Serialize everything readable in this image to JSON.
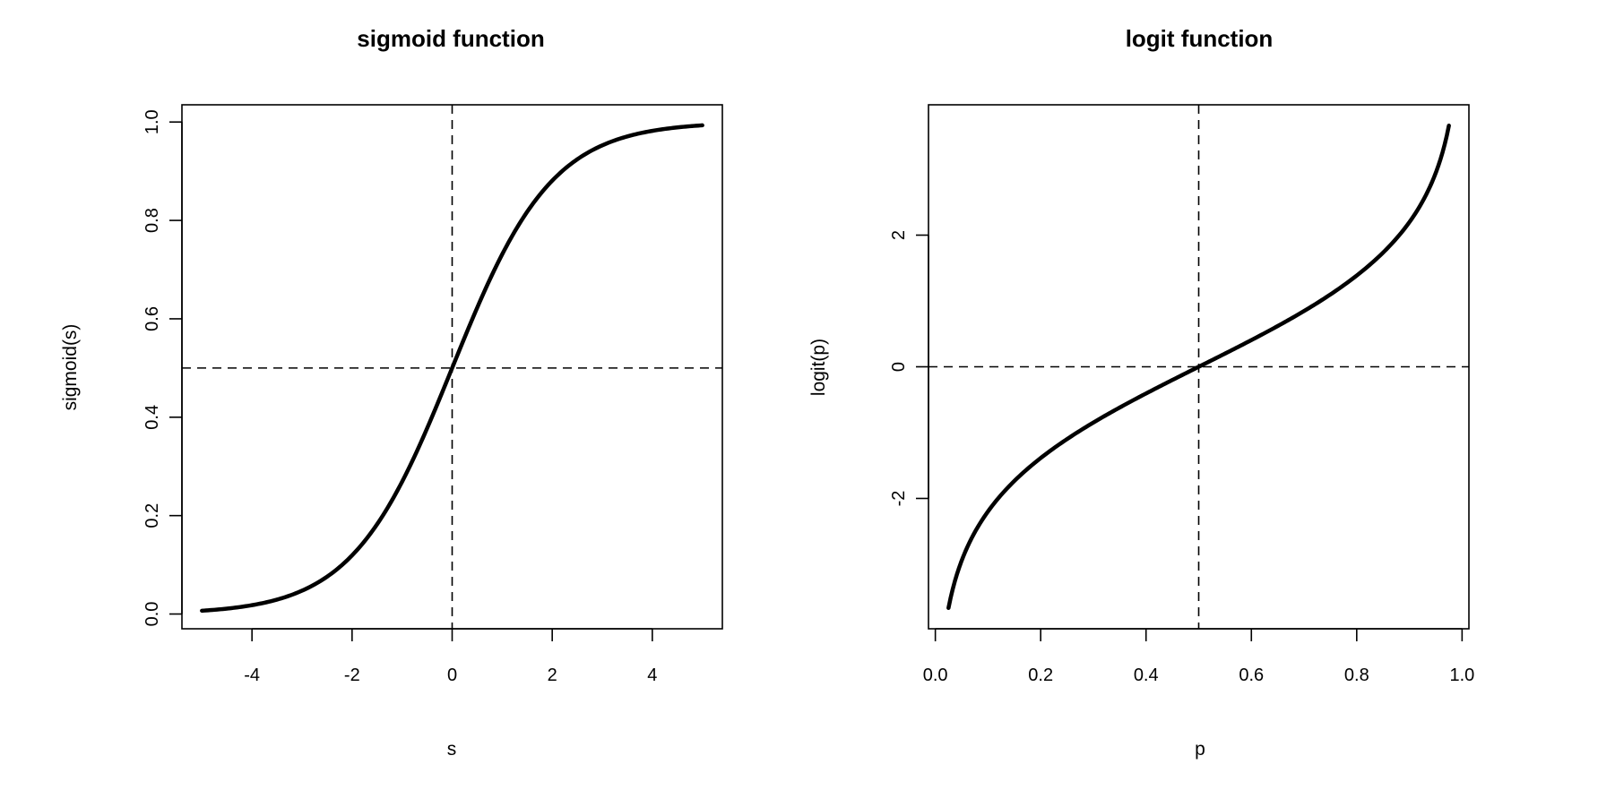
{
  "chart_data": [
    {
      "type": "line",
      "title": "sigmoid function",
      "xlabel": "s",
      "ylabel": "sigmoid(s)",
      "function": "sigmoid",
      "x_range": [
        -5,
        5
      ],
      "xlim": [
        -5.4,
        5.4
      ],
      "ylim": [
        -0.03,
        1.035
      ],
      "xticks": [
        -4,
        -2,
        0,
        2,
        4
      ],
      "xtick_labels": [
        "-4",
        "-2",
        "0",
        "2",
        "4"
      ],
      "yticks": [
        0.0,
        0.2,
        0.4,
        0.6,
        0.8,
        1.0
      ],
      "ytick_labels": [
        "0.0",
        "0.2",
        "0.4",
        "0.6",
        "0.8",
        "1.0"
      ],
      "reference_lines": {
        "vertical_x": 0,
        "horizontal_y": 0.5,
        "style": "dashed"
      },
      "series": [
        {
          "x": [
            -5,
            -4,
            -3,
            -2,
            -1,
            0,
            1,
            2,
            3,
            4,
            5
          ],
          "y": [
            0.007,
            0.018,
            0.047,
            0.119,
            0.269,
            0.5,
            0.731,
            0.881,
            0.953,
            0.982,
            0.993
          ]
        }
      ],
      "grid": false,
      "line_color": "#000000"
    },
    {
      "type": "line",
      "title": "logit function",
      "xlabel": "p",
      "ylabel": "logit(p)",
      "function": "logit",
      "x_range": [
        0.025,
        0.975
      ],
      "xlim": [
        -0.013,
        1.013
      ],
      "ylim": [
        -3.98,
        3.98
      ],
      "xticks": [
        0.0,
        0.2,
        0.4,
        0.6,
        0.8,
        1.0
      ],
      "xtick_labels": [
        "0.0",
        "0.2",
        "0.4",
        "0.6",
        "0.8",
        "1.0"
      ],
      "yticks": [
        -2,
        0,
        2
      ],
      "ytick_labels": [
        "-2",
        "0",
        "2"
      ],
      "reference_lines": {
        "vertical_x": 0.5,
        "horizontal_y": 0,
        "style": "dashed"
      },
      "series": [
        {
          "x": [
            0.025,
            0.1,
            0.2,
            0.3,
            0.4,
            0.5,
            0.6,
            0.7,
            0.8,
            0.9,
            0.975
          ],
          "y": [
            -3.66,
            -2.2,
            -1.39,
            -0.85,
            -0.41,
            0.0,
            0.41,
            0.85,
            1.39,
            2.2,
            3.66
          ]
        }
      ],
      "grid": false,
      "line_color": "#000000"
    }
  ]
}
